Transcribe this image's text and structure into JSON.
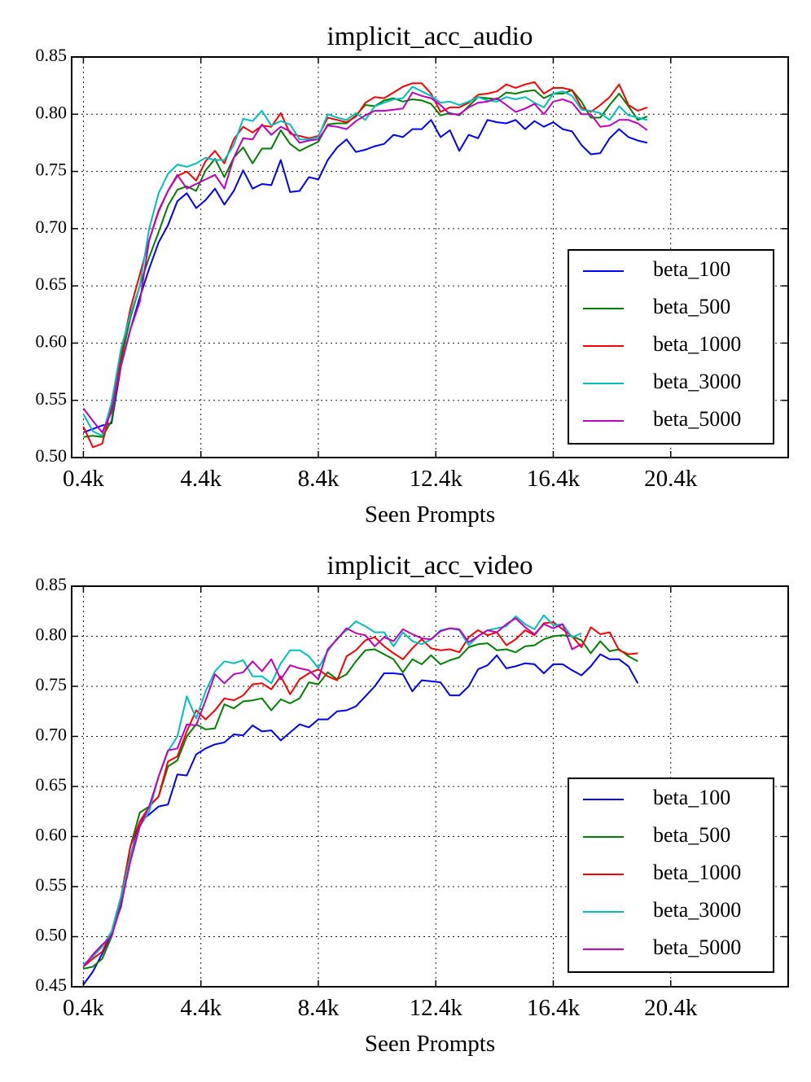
{
  "chart_data": [
    {
      "type": "line",
      "title": "implicit_acc_audio",
      "xlabel": "Seen Prompts",
      "ylabel": "",
      "xlim": [
        0,
        24.4
      ],
      "ylim": [
        0.5,
        0.85
      ],
      "xticks": [
        0.4,
        4.4,
        8.4,
        12.4,
        16.4,
        20.4
      ],
      "xtick_labels": [
        "0.4k",
        "4.4k",
        "8.4k",
        "12.4k",
        "16.4k",
        "20.4k"
      ],
      "yticks": [
        0.5,
        0.55,
        0.6,
        0.65,
        0.7,
        0.75,
        0.8,
        0.85
      ],
      "ytick_labels": [
        "0.50",
        "0.55",
        "0.60",
        "0.65",
        "0.70",
        "0.75",
        "0.80",
        "0.85"
      ],
      "grid": true,
      "legend_position": "lower-right",
      "x_start": 0.4,
      "x_step": 0.32,
      "series": [
        {
          "name": "beta_100",
          "color": "#0000ff",
          "values": [
            0.522,
            0.525,
            0.528,
            0.53,
            0.58,
            0.612,
            0.64,
            0.665,
            0.688,
            0.703,
            0.724,
            0.731,
            0.718,
            0.725,
            0.735,
            0.721,
            0.733,
            0.751,
            0.735,
            0.739,
            0.738,
            0.76,
            0.732,
            0.733,
            0.745,
            0.743,
            0.76,
            0.771,
            0.778,
            0.767,
            0.769,
            0.772,
            0.774,
            0.782,
            0.78,
            0.787,
            0.787,
            0.795,
            0.78,
            0.786,
            0.768,
            0.782,
            0.779,
            0.795,
            0.793,
            0.792,
            0.795,
            0.787,
            0.794,
            0.789,
            0.793,
            0.787,
            0.785,
            0.773,
            0.765,
            0.766,
            0.779,
            0.787,
            0.78,
            0.777,
            0.775
          ]
        },
        {
          "name": "beta_500",
          "color": "#008000",
          "values": [
            0.518,
            0.519,
            0.518,
            0.532,
            0.585,
            0.622,
            0.65,
            0.675,
            0.697,
            0.72,
            0.734,
            0.737,
            0.733,
            0.751,
            0.761,
            0.745,
            0.762,
            0.771,
            0.757,
            0.77,
            0.77,
            0.786,
            0.774,
            0.768,
            0.772,
            0.776,
            0.791,
            0.792,
            0.792,
            0.799,
            0.808,
            0.807,
            0.812,
            0.814,
            0.811,
            0.813,
            0.812,
            0.809,
            0.799,
            0.801,
            0.799,
            0.807,
            0.815,
            0.814,
            0.813,
            0.819,
            0.818,
            0.82,
            0.821,
            0.814,
            0.818,
            0.818,
            0.821,
            0.811,
            0.797,
            0.797,
            0.808,
            0.818,
            0.807,
            0.795,
            0.798
          ]
        },
        {
          "name": "beta_1000",
          "color": "#ff0000",
          "values": [
            0.527,
            0.509,
            0.512,
            0.545,
            0.59,
            0.63,
            0.66,
            0.69,
            0.715,
            0.733,
            0.746,
            0.75,
            0.742,
            0.759,
            0.768,
            0.757,
            0.778,
            0.789,
            0.784,
            0.79,
            0.789,
            0.801,
            0.783,
            0.781,
            0.779,
            0.781,
            0.797,
            0.795,
            0.793,
            0.798,
            0.81,
            0.815,
            0.814,
            0.819,
            0.824,
            0.827,
            0.827,
            0.818,
            0.802,
            0.806,
            0.806,
            0.81,
            0.817,
            0.818,
            0.82,
            0.826,
            0.823,
            0.826,
            0.828,
            0.818,
            0.823,
            0.823,
            0.821,
            0.806,
            0.802,
            0.808,
            0.815,
            0.826,
            0.808,
            0.803,
            0.806
          ]
        },
        {
          "name": "beta_3000",
          "color": "#00bfbf",
          "values": [
            0.538,
            0.523,
            0.519,
            0.548,
            0.595,
            0.625,
            0.65,
            0.7,
            0.731,
            0.748,
            0.756,
            0.754,
            0.757,
            0.762,
            0.76,
            0.76,
            0.773,
            0.796,
            0.794,
            0.803,
            0.79,
            0.794,
            0.791,
            0.778,
            0.778,
            0.78,
            0.8,
            0.797,
            0.795,
            0.801,
            0.795,
            0.807,
            0.81,
            0.813,
            0.814,
            0.824,
            0.82,
            0.816,
            0.81,
            0.811,
            0.808,
            0.811,
            0.815,
            0.812,
            0.811,
            0.815,
            0.813,
            0.815,
            0.81,
            0.806,
            0.818,
            0.82,
            0.816,
            0.804,
            0.803,
            0.801,
            0.795,
            0.807,
            0.799,
            0.797,
            0.795
          ]
        },
        {
          "name": "beta_5000",
          "color": "#bf00bf",
          "values": [
            0.543,
            0.532,
            0.522,
            0.54,
            0.58,
            0.612,
            0.636,
            0.69,
            0.716,
            0.733,
            0.747,
            0.735,
            0.739,
            0.743,
            0.747,
            0.735,
            0.762,
            0.779,
            0.778,
            0.791,
            0.782,
            0.789,
            0.785,
            0.775,
            0.777,
            0.778,
            0.79,
            0.789,
            0.787,
            0.794,
            0.799,
            0.803,
            0.803,
            0.804,
            0.805,
            0.819,
            0.816,
            0.814,
            0.808,
            0.8,
            0.8,
            0.806,
            0.81,
            0.811,
            0.814,
            0.808,
            0.802,
            0.805,
            0.809,
            0.8,
            0.811,
            0.813,
            0.81,
            0.8,
            0.8,
            0.789,
            0.79,
            0.795,
            0.795,
            0.792,
            0.786
          ]
        }
      ]
    },
    {
      "type": "line",
      "title": "implicit_acc_video",
      "xlabel": "Seen Prompts",
      "ylabel": "",
      "xlim": [
        0,
        24.4
      ],
      "ylim": [
        0.45,
        0.85
      ],
      "xticks": [
        0.4,
        4.4,
        8.4,
        12.4,
        16.4,
        20.4
      ],
      "xtick_labels": [
        "0.4k",
        "4.4k",
        "8.4k",
        "12.4k",
        "16.4k",
        "20.4k"
      ],
      "yticks": [
        0.45,
        0.5,
        0.55,
        0.6,
        0.65,
        0.7,
        0.75,
        0.8,
        0.85
      ],
      "ytick_labels": [
        "0.45",
        "0.50",
        "0.55",
        "0.60",
        "0.65",
        "0.70",
        "0.75",
        "0.80",
        "0.85"
      ],
      "grid": true,
      "legend_position": "lower-right",
      "x_start": 0.4,
      "x_step": 0.32,
      "series": [
        {
          "name": "beta_100",
          "color": "#0000ff",
          "values": [
            0.452,
            0.465,
            0.483,
            0.503,
            0.53,
            0.58,
            0.615,
            0.622,
            0.63,
            0.632,
            0.662,
            0.661,
            0.682,
            0.688,
            0.692,
            0.694,
            0.702,
            0.701,
            0.711,
            0.705,
            0.706,
            0.696,
            0.704,
            0.712,
            0.709,
            0.717,
            0.717,
            0.725,
            0.726,
            0.73,
            0.74,
            0.75,
            0.763,
            0.763,
            0.762,
            0.745,
            0.756,
            0.755,
            0.754,
            0.741,
            0.741,
            0.75,
            0.767,
            0.771,
            0.781,
            0.768,
            0.77,
            0.773,
            0.772,
            0.763,
            0.772,
            0.772,
            0.766,
            0.761,
            0.77,
            0.782,
            0.777,
            0.777,
            0.77,
            0.753
          ]
        },
        {
          "name": "beta_500",
          "color": "#008000",
          "values": [
            0.468,
            0.47,
            0.478,
            0.5,
            0.535,
            0.59,
            0.624,
            0.63,
            0.64,
            0.67,
            0.676,
            0.7,
            0.712,
            0.707,
            0.708,
            0.732,
            0.728,
            0.735,
            0.736,
            0.738,
            0.726,
            0.737,
            0.733,
            0.738,
            0.754,
            0.752,
            0.764,
            0.757,
            0.762,
            0.775,
            0.786,
            0.787,
            0.782,
            0.777,
            0.764,
            0.777,
            0.772,
            0.781,
            0.772,
            0.776,
            0.779,
            0.789,
            0.792,
            0.793,
            0.786,
            0.787,
            0.784,
            0.79,
            0.791,
            0.797,
            0.8,
            0.801,
            0.8,
            0.796,
            0.783,
            0.795,
            0.785,
            0.787,
            0.78,
            0.775
          ]
        },
        {
          "name": "beta_1000",
          "color": "#ff0000",
          "values": [
            0.47,
            0.478,
            0.485,
            0.505,
            0.54,
            0.59,
            0.615,
            0.63,
            0.64,
            0.675,
            0.68,
            0.705,
            0.726,
            0.717,
            0.726,
            0.738,
            0.736,
            0.741,
            0.752,
            0.753,
            0.747,
            0.76,
            0.742,
            0.757,
            0.763,
            0.767,
            0.76,
            0.756,
            0.78,
            0.786,
            0.796,
            0.799,
            0.79,
            0.783,
            0.777,
            0.788,
            0.797,
            0.788,
            0.786,
            0.787,
            0.784,
            0.799,
            0.806,
            0.801,
            0.804,
            0.791,
            0.797,
            0.806,
            0.801,
            0.813,
            0.814,
            0.807,
            0.8,
            0.789,
            0.809,
            0.802,
            0.804,
            0.786,
            0.782,
            0.783
          ]
        },
        {
          "name": "beta_3000",
          "color": "#00bfbf",
          "values": [
            0.472,
            0.48,
            0.49,
            0.505,
            0.54,
            0.58,
            0.61,
            0.625,
            0.66,
            0.685,
            0.7,
            0.74,
            0.718,
            0.745,
            0.765,
            0.775,
            0.773,
            0.776,
            0.76,
            0.76,
            0.753,
            0.773,
            0.786,
            0.786,
            0.78,
            0.768,
            0.785,
            0.798,
            0.806,
            0.815,
            0.81,
            0.804,
            0.804,
            0.79,
            0.804,
            0.795,
            0.792,
            0.797,
            0.806,
            0.808,
            0.806,
            0.791,
            0.8,
            0.806,
            0.808,
            0.81,
            0.82,
            0.812,
            0.807,
            0.821,
            0.811,
            0.812,
            0.799,
            0.803
          ]
        },
        {
          "name": "beta_5000",
          "color": "#bf00bf",
          "values": [
            0.47,
            0.482,
            0.492,
            0.5,
            0.532,
            0.575,
            0.61,
            0.63,
            0.66,
            0.686,
            0.688,
            0.712,
            0.711,
            0.736,
            0.762,
            0.753,
            0.762,
            0.764,
            0.775,
            0.765,
            0.777,
            0.757,
            0.771,
            0.768,
            0.766,
            0.757,
            0.787,
            0.797,
            0.808,
            0.803,
            0.801,
            0.79,
            0.799,
            0.795,
            0.807,
            0.802,
            0.798,
            0.797,
            0.805,
            0.808,
            0.807,
            0.794,
            0.8,
            0.806,
            0.804,
            0.812,
            0.818,
            0.809,
            0.802,
            0.812,
            0.808,
            0.812,
            0.787,
            0.792
          ]
        }
      ]
    }
  ]
}
